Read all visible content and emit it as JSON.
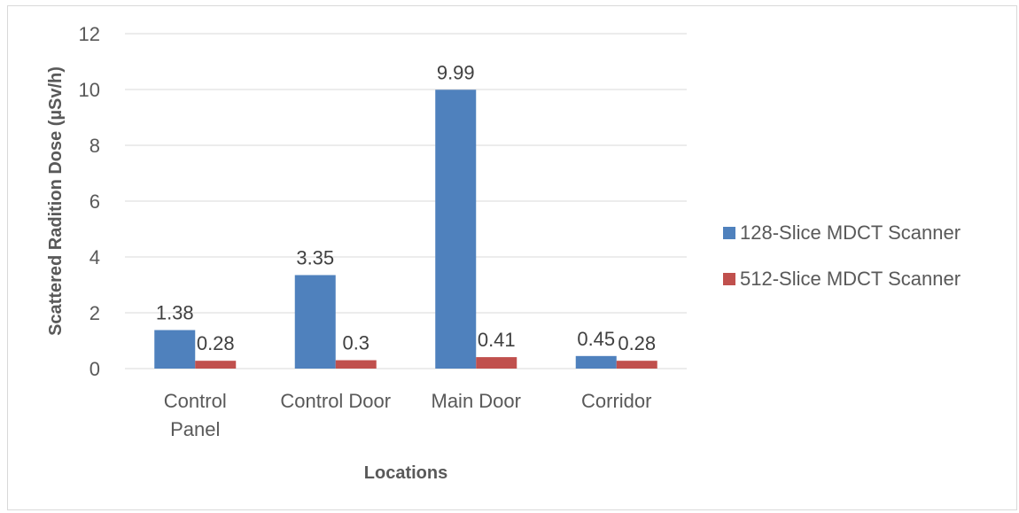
{
  "chart_data": {
    "type": "bar",
    "categories": [
      [
        "Control",
        "Panel"
      ],
      [
        "Control Door"
      ],
      [
        "Main Door"
      ],
      [
        "Corridor"
      ]
    ],
    "series": [
      {
        "name": "128-Slice MDCT Scanner",
        "color": "#4f81bd",
        "values": [
          1.38,
          3.35,
          9.99,
          0.45
        ],
        "labels": [
          "1.38",
          "3.35",
          "9.99",
          "0.45"
        ]
      },
      {
        "name": "512-Slice MDCT Scanner",
        "color": "#c0504d",
        "values": [
          0.28,
          0.3,
          0.41,
          0.28
        ],
        "labels": [
          "0.28",
          "0.3",
          "0.41",
          "0.28"
        ]
      }
    ],
    "xlabel": "Locations",
    "ylabel": "Scattered Radition Dose (µSv/h)",
    "ylim": [
      0,
      12
    ],
    "yticks": [
      0,
      2,
      4,
      6,
      8,
      10,
      12
    ],
    "grid": true,
    "legend_position": "right",
    "gridline_color": "#d9d9d9"
  }
}
